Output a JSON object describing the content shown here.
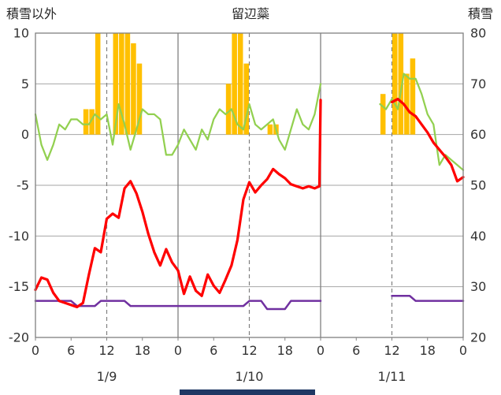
{
  "header": {
    "left_axis_title": "積雪以外",
    "chart_title": "留辺蘂",
    "right_axis_title": "積雪"
  },
  "colors": {
    "bar": "#FFC000",
    "red_line": "#FF0000",
    "green_line": "#92D050",
    "purple_line": "#7030A0",
    "gridline": "#A6A6A6",
    "plot_border": "#808080",
    "axis_text": "#333333",
    "accent_bar": "#1F3864"
  },
  "chart_data": {
    "type": "combo",
    "title": "留辺蘂",
    "x_axis": {
      "unit": "hour",
      "range": [
        0,
        72
      ],
      "tick_interval": 6,
      "tick_labels": [
        "0",
        "6",
        "12",
        "18",
        "0",
        "6",
        "12",
        "18",
        "0",
        "6",
        "12",
        "18",
        "0"
      ],
      "day_labels": [
        {
          "label": "1/9",
          "center_hour": 12
        },
        {
          "label": "1/10",
          "center_hour": 36
        },
        {
          "label": "1/11",
          "center_hour": 60
        }
      ],
      "solid_gridline_hours": [
        24,
        48
      ],
      "dashed_gridline_hours": [
        12,
        36,
        60
      ]
    },
    "left_axis": {
      "title": "積雪以外",
      "range": [
        -20,
        10
      ],
      "ticks": [
        10,
        5,
        0,
        -5,
        -10,
        -15,
        -20
      ]
    },
    "right_axis": {
      "title": "積雪",
      "range": [
        20,
        80
      ],
      "ticks": [
        80,
        70,
        60,
        50,
        40,
        30,
        20
      ]
    },
    "series": {
      "bars": {
        "name": "orange-bars",
        "axis": "left",
        "points": [
          [
            8,
            2.5
          ],
          [
            9,
            2.5
          ],
          [
            10,
            10
          ],
          [
            13,
            10
          ],
          [
            14,
            10
          ],
          [
            15,
            10
          ],
          [
            16,
            9
          ],
          [
            17,
            7
          ],
          [
            32,
            5
          ],
          [
            33,
            10
          ],
          [
            34,
            10
          ],
          [
            35,
            7
          ],
          [
            39,
            1
          ],
          [
            40,
            1
          ],
          [
            58,
            4
          ],
          [
            60,
            10
          ],
          [
            61,
            10
          ],
          [
            62,
            6
          ],
          [
            63,
            7.5
          ]
        ]
      },
      "red": {
        "name": "red-line",
        "axis": "left",
        "segments": [
          [
            [
              0,
              -15.3
            ],
            [
              1,
              -14.1
            ],
            [
              2,
              -14.3
            ],
            [
              3,
              -15.6
            ],
            [
              4,
              -16.4
            ],
            [
              5,
              -16.6
            ],
            [
              6,
              -16.8
            ],
            [
              7,
              -17.0
            ],
            [
              8,
              -16.6
            ],
            [
              9,
              -13.8
            ],
            [
              10,
              -11.2
            ],
            [
              11,
              -11.6
            ],
            [
              12,
              -8.3
            ],
            [
              13,
              -7.8
            ],
            [
              14,
              -8.2
            ],
            [
              15,
              -5.3
            ],
            [
              16,
              -4.6
            ],
            [
              17,
              -5.8
            ],
            [
              18,
              -7.6
            ],
            [
              19,
              -9.8
            ],
            [
              20,
              -11.6
            ],
            [
              21,
              -12.9
            ],
            [
              22,
              -11.3
            ],
            [
              23,
              -12.6
            ],
            [
              24,
              -13.4
            ],
            [
              25,
              -15.7
            ],
            [
              26,
              -14.0
            ],
            [
              27,
              -15.4
            ],
            [
              28,
              -15.9
            ],
            [
              29,
              -13.8
            ],
            [
              30,
              -14.9
            ],
            [
              31,
              -15.6
            ],
            [
              32,
              -14.3
            ],
            [
              33,
              -12.9
            ],
            [
              34,
              -10.4
            ],
            [
              35,
              -6.4
            ],
            [
              36,
              -4.7
            ],
            [
              37,
              -5.7
            ],
            [
              38,
              -5.0
            ],
            [
              39,
              -4.4
            ],
            [
              40,
              -3.4
            ],
            [
              41,
              -3.9
            ],
            [
              42,
              -4.3
            ],
            [
              43,
              -4.9
            ],
            [
              44,
              -5.1
            ],
            [
              45,
              -5.3
            ],
            [
              46,
              -5.1
            ],
            [
              47,
              -5.3
            ],
            [
              47.8,
              -5.1
            ],
            [
              48,
              3.4
            ]
          ],
          [
            [
              60,
              3.2
            ],
            [
              61,
              3.5
            ],
            [
              62,
              3.0
            ],
            [
              63,
              2.2
            ],
            [
              64,
              1.8
            ],
            [
              65,
              1.0
            ],
            [
              66,
              0.2
            ],
            [
              67,
              -0.8
            ],
            [
              68,
              -1.5
            ],
            [
              69,
              -2.2
            ],
            [
              70,
              -3.0
            ],
            [
              71,
              -4.6
            ],
            [
              72,
              -4.2
            ]
          ]
        ]
      },
      "green": {
        "name": "green-line",
        "axis": "right",
        "segments": [
          [
            [
              0,
              64
            ],
            [
              1,
              58
            ],
            [
              2,
              55
            ],
            [
              3,
              58
            ],
            [
              4,
              62
            ],
            [
              5,
              61
            ],
            [
              6,
              63
            ],
            [
              7,
              63
            ],
            [
              8,
              62
            ],
            [
              9,
              62
            ],
            [
              10,
              64
            ],
            [
              11,
              63
            ],
            [
              12,
              64
            ],
            [
              13,
              58
            ],
            [
              14,
              66
            ],
            [
              15,
              62
            ],
            [
              16,
              57
            ],
            [
              17,
              61
            ],
            [
              18,
              65
            ],
            [
              19,
              64
            ],
            [
              20,
              64
            ],
            [
              21,
              63
            ],
            [
              22,
              56
            ],
            [
              23,
              56
            ],
            [
              24,
              58
            ],
            [
              25,
              61
            ],
            [
              26,
              59
            ],
            [
              27,
              57
            ],
            [
              28,
              61
            ],
            [
              29,
              59
            ],
            [
              30,
              63
            ],
            [
              31,
              65
            ],
            [
              32,
              64
            ],
            [
              33,
              65
            ],
            [
              34,
              62
            ],
            [
              35,
              61
            ],
            [
              36,
              66
            ],
            [
              37,
              62
            ],
            [
              38,
              61
            ],
            [
              39,
              62
            ],
            [
              40,
              63
            ],
            [
              41,
              59
            ],
            [
              42,
              57
            ],
            [
              43,
              61
            ],
            [
              44,
              65
            ],
            [
              45,
              62
            ],
            [
              46,
              61
            ],
            [
              47,
              64
            ],
            [
              48,
              70
            ]
          ],
          [
            [
              58,
              66
            ],
            [
              59,
              65
            ],
            [
              60,
              67
            ],
            [
              61,
              65
            ],
            [
              62,
              72
            ],
            [
              63,
              71
            ],
            [
              64,
              71
            ],
            [
              65,
              68
            ],
            [
              66,
              64
            ],
            [
              67,
              62
            ],
            [
              68,
              54
            ],
            [
              69,
              56
            ],
            [
              70,
              55
            ],
            [
              71,
              54
            ],
            [
              72,
              53
            ]
          ]
        ]
      },
      "purple": {
        "name": "purple-line",
        "axis": "left",
        "segments": [
          [
            [
              0,
              -16.4
            ],
            [
              6,
              -16.4
            ],
            [
              7,
              -16.9
            ],
            [
              10,
              -16.9
            ],
            [
              11,
              -16.4
            ],
            [
              15,
              -16.4
            ],
            [
              16,
              -16.9
            ],
            [
              35,
              -16.9
            ],
            [
              36,
              -16.4
            ],
            [
              38,
              -16.4
            ],
            [
              39,
              -17.2
            ],
            [
              42,
              -17.2
            ],
            [
              43,
              -16.4
            ],
            [
              48,
              -16.4
            ]
          ],
          [
            [
              60,
              -15.9
            ],
            [
              63,
              -15.9
            ],
            [
              64,
              -16.4
            ],
            [
              72,
              -16.4
            ]
          ]
        ]
      }
    }
  }
}
